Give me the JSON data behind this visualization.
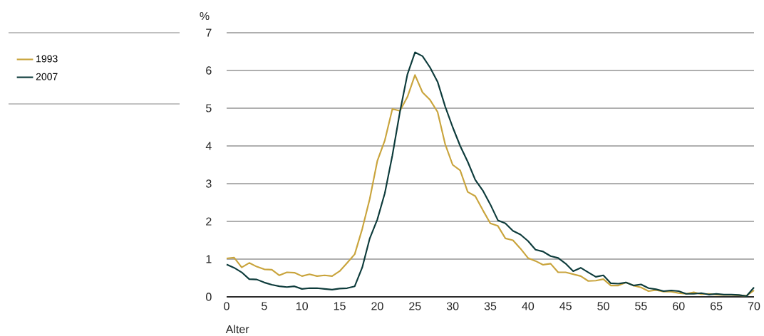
{
  "chart_data": {
    "type": "line",
    "xlabel": "Alter",
    "ylabel": "%",
    "x": [
      0,
      1,
      2,
      3,
      4,
      5,
      6,
      7,
      8,
      9,
      10,
      11,
      12,
      13,
      14,
      15,
      16,
      17,
      18,
      19,
      20,
      21,
      22,
      23,
      24,
      25,
      26,
      27,
      28,
      29,
      30,
      31,
      32,
      33,
      34,
      35,
      36,
      37,
      38,
      39,
      40,
      41,
      42,
      43,
      44,
      45,
      46,
      47,
      48,
      49,
      50,
      51,
      52,
      53,
      54,
      55,
      56,
      57,
      58,
      59,
      60,
      61,
      62,
      63,
      64,
      65,
      66,
      67,
      68,
      69,
      70
    ],
    "series": [
      {
        "name": "1993",
        "color": "#c9a43c",
        "values": [
          1.02,
          1.04,
          0.78,
          0.9,
          0.8,
          0.73,
          0.72,
          0.57,
          0.65,
          0.64,
          0.55,
          0.6,
          0.55,
          0.57,
          0.55,
          0.68,
          0.9,
          1.13,
          1.8,
          2.6,
          3.6,
          4.15,
          4.98,
          4.93,
          5.3,
          5.88,
          5.42,
          5.22,
          4.9,
          4.05,
          3.5,
          3.35,
          2.78,
          2.67,
          2.3,
          1.95,
          1.88,
          1.55,
          1.5,
          1.28,
          1.03,
          0.95,
          0.85,
          0.88,
          0.65,
          0.65,
          0.6,
          0.55,
          0.42,
          0.43,
          0.47,
          0.3,
          0.3,
          0.38,
          0.3,
          0.25,
          0.15,
          0.18,
          0.14,
          0.14,
          0.1,
          0.08,
          0.12,
          0.07,
          0.08,
          0.06,
          0.05,
          0.05,
          0.04,
          0.03,
          0.17
        ]
      },
      {
        "name": "2007",
        "color": "#0d3b3b",
        "values": [
          0.86,
          0.77,
          0.65,
          0.47,
          0.46,
          0.38,
          0.32,
          0.28,
          0.26,
          0.28,
          0.21,
          0.23,
          0.23,
          0.21,
          0.19,
          0.22,
          0.23,
          0.28,
          0.78,
          1.55,
          2.05,
          2.75,
          3.75,
          4.9,
          5.9,
          6.48,
          6.38,
          6.08,
          5.7,
          5.05,
          4.5,
          4.0,
          3.58,
          3.1,
          2.82,
          2.45,
          2.03,
          1.95,
          1.75,
          1.65,
          1.48,
          1.25,
          1.2,
          1.08,
          1.03,
          0.88,
          0.68,
          0.77,
          0.65,
          0.53,
          0.57,
          0.36,
          0.35,
          0.38,
          0.3,
          0.33,
          0.23,
          0.2,
          0.15,
          0.17,
          0.15,
          0.08,
          0.08,
          0.1,
          0.06,
          0.08,
          0.06,
          0.06,
          0.05,
          0.02,
          0.25
        ]
      }
    ],
    "xlim": [
      0,
      70
    ],
    "xticks": [
      0,
      5,
      10,
      15,
      20,
      25,
      30,
      35,
      40,
      45,
      50,
      55,
      60,
      65,
      70
    ],
    "ylim": [
      0,
      7
    ],
    "yticks": [
      0,
      1,
      2,
      3,
      4,
      5,
      6,
      7
    ],
    "grid": "y",
    "legend": "top left",
    "marker": "none",
    "line_style": "solid"
  }
}
